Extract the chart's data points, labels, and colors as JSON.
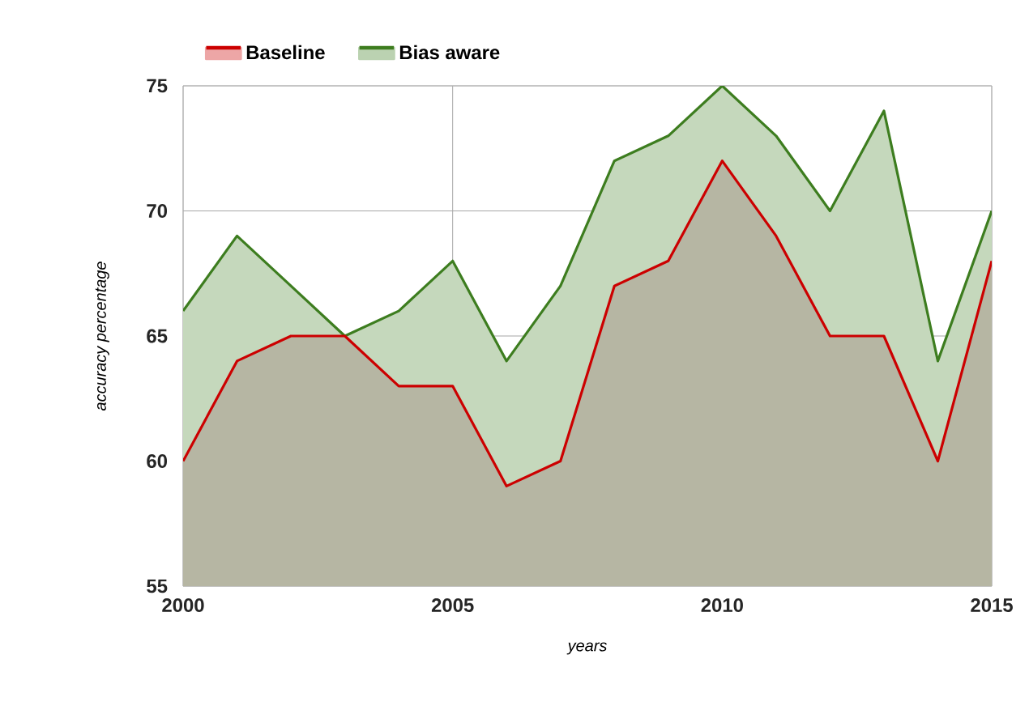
{
  "chart_data": {
    "type": "area",
    "xlabel": "years",
    "ylabel": "accuracy percentage",
    "x": [
      2000,
      2001,
      2002,
      2003,
      2004,
      2005,
      2006,
      2007,
      2008,
      2009,
      2010,
      2011,
      2012,
      2013,
      2014,
      2015
    ],
    "series": [
      {
        "name": "Baseline",
        "color": "#cc0000",
        "values": [
          60,
          64,
          65,
          65,
          63,
          63,
          59,
          60,
          67,
          68,
          72,
          69,
          65,
          65,
          60,
          68
        ]
      },
      {
        "name": "Bias aware",
        "color": "#3d7d1f",
        "values": [
          66,
          69,
          67,
          65,
          66,
          68,
          64,
          67,
          72,
          73,
          75,
          73,
          70,
          74,
          64,
          70
        ]
      }
    ],
    "xlim": [
      2000,
      2015
    ],
    "xticks": [
      2000,
      2005,
      2010,
      2015
    ],
    "ylim": [
      55,
      75
    ],
    "yticks": [
      55,
      60,
      65,
      70,
      75
    ],
    "grid": true,
    "legend": "top"
  }
}
